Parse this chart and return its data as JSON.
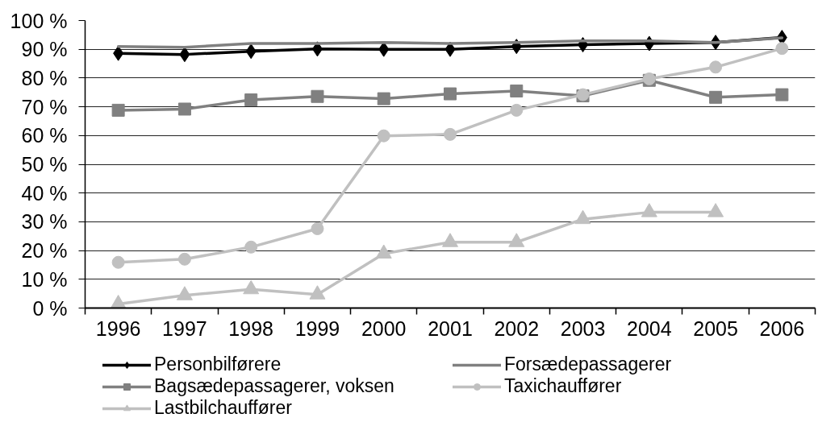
{
  "chart_data": {
    "type": "line",
    "categories": [
      "1996",
      "1997",
      "1998",
      "1999",
      "2000",
      "2001",
      "2002",
      "2003",
      "2004",
      "2005",
      "2006"
    ],
    "ylim": [
      0,
      100
    ],
    "yticks": [
      {
        "value": 0,
        "label": "0 %"
      },
      {
        "value": 10,
        "label": "10 %"
      },
      {
        "value": 20,
        "label": "20 %"
      },
      {
        "value": 30,
        "label": "30 %"
      },
      {
        "value": 40,
        "label": "40 %"
      },
      {
        "value": 50,
        "label": "50 %"
      },
      {
        "value": 60,
        "label": "60 %"
      },
      {
        "value": 70,
        "label": "70 %"
      },
      {
        "value": 80,
        "label": "80 %"
      },
      {
        "value": 90,
        "label": "90 %"
      },
      {
        "value": 100,
        "label": "100 %"
      }
    ],
    "grid": "y",
    "legend": "bottom",
    "line_style": "solid",
    "series": [
      {
        "name": "Personbilførere",
        "color": "#000000",
        "marker": "diamond",
        "values": [
          88.6,
          88.2,
          89.3,
          90.1,
          90.0,
          90.0,
          91.0,
          91.6,
          92.0,
          92.4,
          94.1
        ]
      },
      {
        "name": "Forsædepassagerer",
        "color": "#808080",
        "marker": "none",
        "values": [
          91.0,
          90.7,
          92.0,
          92.0,
          92.4,
          92.0,
          92.4,
          92.9,
          92.9,
          92.4,
          94.0
        ]
      },
      {
        "name": "Bagsædepassagerer, voksen",
        "color": "#808080",
        "marker": "square",
        "values": [
          68.8,
          69.2,
          72.4,
          73.6,
          72.8,
          74.5,
          75.5,
          73.8,
          79.2,
          73.3,
          74.2
        ]
      },
      {
        "name": "Taxichauffører",
        "color": "#c0c0c0",
        "marker": "circle",
        "values": [
          15.9,
          17.0,
          21.2,
          27.6,
          59.9,
          60.4,
          68.8,
          74.2,
          79.7,
          83.8,
          90.3
        ]
      },
      {
        "name": "Lastbilchauffører",
        "color": "#c0c0c0",
        "marker": "triangle",
        "values": [
          1.4,
          4.4,
          6.5,
          4.7,
          18.9,
          22.9,
          22.9,
          30.9,
          33.3,
          33.3,
          null
        ]
      }
    ]
  }
}
